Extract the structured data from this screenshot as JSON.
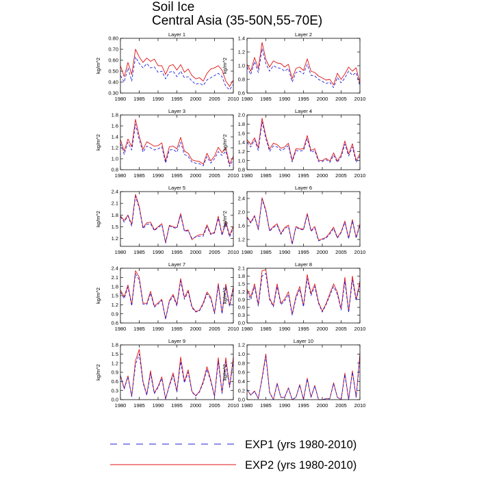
{
  "title": "Soil Ice",
  "subtitle": "Central Asia (35-50N,55-70E)",
  "legend": [
    {
      "label": "EXP1 (yrs 1980-2010)",
      "color": "#1f1fd8",
      "style": "dashed"
    },
    {
      "label": "EXP2 (yrs 1980-2010)",
      "color": "#e01010",
      "style": "solid"
    }
  ],
  "chart_data": [
    {
      "type": "line",
      "title": "Layer 1",
      "ylabel": "kg/m^2",
      "xlim": [
        1980,
        2010
      ],
      "ylim": [
        0.3,
        0.8
      ],
      "yticks": [
        0.3,
        0.4,
        0.5,
        0.6,
        0.7,
        0.8
      ],
      "ytick_labels": [
        "0.30",
        "0.40",
        "0.50",
        "0.60",
        "0.70",
        "0.80"
      ],
      "xticks": [
        1980,
        1985,
        1990,
        1995,
        2000,
        2005,
        2010
      ],
      "series": [
        {
          "name": "EXP1",
          "values": [
            0.46,
            0.4,
            0.53,
            0.41,
            0.63,
            0.57,
            0.53,
            0.57,
            0.53,
            0.54,
            0.49,
            0.5,
            0.43,
            0.49,
            0.5,
            0.45,
            0.5,
            0.44,
            0.45,
            0.41,
            0.38,
            0.39,
            0.37,
            0.42,
            0.44,
            0.46,
            0.48,
            0.45,
            0.36,
            0.33,
            0.38
          ]
        },
        {
          "name": "EXP2",
          "values": [
            0.55,
            0.45,
            0.58,
            0.47,
            0.7,
            0.63,
            0.58,
            0.62,
            0.59,
            0.61,
            0.55,
            0.55,
            0.47,
            0.55,
            0.56,
            0.51,
            0.56,
            0.49,
            0.52,
            0.46,
            0.43,
            0.44,
            0.41,
            0.48,
            0.52,
            0.53,
            0.55,
            0.51,
            0.41,
            0.36,
            0.42
          ]
        }
      ]
    },
    {
      "type": "line",
      "title": "Layer 2",
      "ylabel": "kg/m^2",
      "xlim": [
        1980,
        2010
      ],
      "ylim": [
        0.6,
        1.4
      ],
      "yticks": [
        0.6,
        0.8,
        1.0,
        1.2,
        1.4
      ],
      "ytick_labels": [
        "0.6",
        "0.8",
        "1.0",
        "1.2",
        "1.4"
      ],
      "xticks": [
        1980,
        1985,
        1990,
        1995,
        2000,
        2005,
        2010
      ],
      "series": [
        {
          "name": "EXP1",
          "values": [
            0.98,
            0.87,
            1.06,
            0.9,
            1.25,
            1.03,
            0.92,
            1.0,
            0.97,
            0.96,
            0.92,
            0.96,
            0.76,
            0.9,
            0.92,
            0.88,
            1.02,
            0.86,
            0.85,
            0.8,
            0.77,
            0.74,
            0.76,
            0.68,
            0.83,
            0.75,
            0.82,
            0.92,
            0.86,
            0.9,
            0.7
          ]
        },
        {
          "name": "EXP2",
          "values": [
            1.02,
            0.92,
            1.12,
            0.96,
            1.34,
            1.09,
            0.98,
            1.07,
            1.04,
            1.03,
            0.98,
            1.02,
            0.81,
            0.96,
            0.98,
            0.93,
            1.1,
            0.92,
            0.9,
            0.85,
            0.82,
            0.79,
            0.8,
            0.72,
            0.89,
            0.8,
            0.88,
            0.98,
            0.92,
            0.97,
            0.74
          ]
        }
      ]
    },
    {
      "type": "line",
      "title": "Layer 3",
      "ylabel": "kg/m^2",
      "xlim": [
        1980,
        2010
      ],
      "ylim": [
        0.8,
        1.8
      ],
      "yticks": [
        0.8,
        1.0,
        1.2,
        1.4,
        1.6,
        1.8
      ],
      "ytick_labels": [
        "0.8",
        "1.0",
        "1.2",
        "1.4",
        "1.6",
        "1.8"
      ],
      "xticks": [
        1980,
        1985,
        1990,
        1995,
        2000,
        2005,
        2010
      ],
      "series": [
        {
          "name": "EXP1",
          "values": [
            1.28,
            1.08,
            1.3,
            1.16,
            1.63,
            1.35,
            1.12,
            1.23,
            1.2,
            1.16,
            1.18,
            1.22,
            0.92,
            1.16,
            1.17,
            1.12,
            1.3,
            1.08,
            1.04,
            0.94,
            0.92,
            0.91,
            0.87,
            1.04,
            0.92,
            1.0,
            1.13,
            1.06,
            1.14,
            0.86,
            0.99
          ]
        },
        {
          "name": "EXP2",
          "values": [
            1.35,
            1.14,
            1.36,
            1.22,
            1.72,
            1.41,
            1.17,
            1.31,
            1.27,
            1.23,
            1.24,
            1.29,
            0.96,
            1.22,
            1.23,
            1.18,
            1.39,
            1.14,
            1.1,
            0.98,
            0.96,
            0.95,
            0.9,
            1.1,
            0.96,
            1.05,
            1.21,
            1.11,
            1.2,
            0.9,
            1.05
          ]
        }
      ]
    },
    {
      "type": "line",
      "title": "Layer 4",
      "ylabel": "kg/m^2",
      "xlim": [
        1980,
        2010
      ],
      "ylim": [
        0.8,
        2.0
      ],
      "yticks": [
        0.8,
        1.0,
        1.2,
        1.4,
        1.6,
        1.8,
        2.0
      ],
      "ytick_labels": [
        "0.8",
        "1.0",
        "1.2",
        "1.4",
        "1.6",
        "1.8",
        "2.0"
      ],
      "xticks": [
        1980,
        1985,
        1990,
        1995,
        2000,
        2005,
        2010
      ],
      "series": [
        {
          "name": "EXP1",
          "values": [
            1.4,
            1.3,
            1.45,
            1.22,
            1.85,
            1.48,
            1.2,
            1.32,
            1.3,
            1.22,
            1.26,
            1.33,
            0.97,
            1.22,
            1.21,
            1.22,
            1.48,
            1.18,
            1.22,
            0.98,
            0.98,
            1.02,
            0.96,
            1.12,
            0.96,
            1.08,
            1.36,
            1.1,
            1.3,
            0.96,
            1.1
          ]
        },
        {
          "name": "EXP2",
          "values": [
            1.46,
            1.35,
            1.5,
            1.28,
            1.93,
            1.54,
            1.25,
            1.38,
            1.35,
            1.27,
            1.3,
            1.38,
            1.0,
            1.26,
            1.25,
            1.26,
            1.55,
            1.22,
            1.26,
            1.01,
            1.0,
            1.05,
            0.99,
            1.17,
            0.99,
            1.12,
            1.43,
            1.14,
            1.37,
            1.0,
            1.15
          ]
        }
      ]
    },
    {
      "type": "line",
      "title": "Layer 5",
      "ylabel": "kg/m^2",
      "xlim": [
        1980,
        2010
      ],
      "ylim": [
        1.0,
        2.4
      ],
      "yticks": [
        1.2,
        1.5,
        1.8,
        2.1,
        2.4
      ],
      "ytick_labels": [
        "1.2",
        "1.5",
        "1.8",
        "2.1",
        "2.4"
      ],
      "xticks": [
        1980,
        1985,
        1990,
        1995,
        2000,
        2005,
        2010
      ],
      "series": [
        {
          "name": "EXP1",
          "values": [
            1.76,
            1.62,
            1.78,
            1.52,
            2.28,
            1.98,
            1.45,
            1.56,
            1.58,
            1.4,
            1.48,
            1.55,
            1.08,
            1.52,
            1.48,
            1.46,
            1.8,
            1.38,
            1.4,
            1.2,
            1.24,
            1.26,
            1.26,
            1.5,
            1.3,
            1.34,
            1.72,
            1.28,
            1.6,
            1.24,
            1.48
          ]
        },
        {
          "name": "EXP2",
          "values": [
            1.78,
            1.66,
            1.8,
            1.56,
            2.33,
            2.02,
            1.48,
            1.6,
            1.62,
            1.42,
            1.5,
            1.58,
            1.1,
            1.54,
            1.5,
            1.48,
            1.84,
            1.4,
            1.42,
            1.17,
            1.25,
            1.3,
            1.3,
            1.55,
            1.32,
            1.36,
            1.77,
            1.3,
            1.64,
            1.28,
            1.52
          ]
        }
      ]
    },
    {
      "type": "line",
      "title": "Layer 6",
      "ylabel": "kg/m^2",
      "xlim": [
        1980,
        2010
      ],
      "ylim": [
        1.0,
        2.6
      ],
      "yticks": [
        1.2,
        1.6,
        2.0,
        2.4
      ],
      "ytick_labels": [
        "1.2",
        "1.6",
        "2.0",
        "2.4"
      ],
      "xticks": [
        1980,
        1985,
        1990,
        1995,
        2000,
        2005,
        2010
      ],
      "series": [
        {
          "name": "EXP1",
          "values": [
            1.84,
            1.68,
            1.88,
            1.48,
            2.38,
            2.02,
            1.44,
            1.55,
            1.62,
            1.35,
            1.52,
            1.58,
            1.06,
            1.56,
            1.5,
            1.48,
            1.92,
            1.44,
            1.54,
            1.16,
            1.2,
            1.24,
            1.36,
            1.52,
            1.24,
            1.4,
            1.7,
            1.22,
            1.74,
            1.24,
            1.62
          ]
        },
        {
          "name": "EXP2",
          "values": [
            1.86,
            1.7,
            1.9,
            1.5,
            2.42,
            2.06,
            1.46,
            1.58,
            1.66,
            1.37,
            1.55,
            1.62,
            1.07,
            1.58,
            1.52,
            1.5,
            1.96,
            1.46,
            1.58,
            1.18,
            1.22,
            1.26,
            1.4,
            1.56,
            1.26,
            1.42,
            1.74,
            1.24,
            1.78,
            1.26,
            1.66
          ]
        }
      ]
    },
    {
      "type": "line",
      "title": "Layer 7",
      "ylabel": "kg/m^2",
      "xlim": [
        1980,
        2010
      ],
      "ylim": [
        0.6,
        2.4
      ],
      "yticks": [
        0.6,
        0.9,
        1.2,
        1.5,
        1.8,
        2.1,
        2.4
      ],
      "ytick_labels": [
        "0.6",
        "0.9",
        "1.2",
        "1.5",
        "1.8",
        "2.1",
        "2.4"
      ],
      "xticks": [
        1980,
        1985,
        1990,
        1995,
        2000,
        2005,
        2010
      ],
      "series": [
        {
          "name": "EXP1",
          "values": [
            1.62,
            1.4,
            1.78,
            1.16,
            2.22,
            2.02,
            1.22,
            1.2,
            1.58,
            1.12,
            1.22,
            1.34,
            0.72,
            1.3,
            1.48,
            1.16,
            1.98,
            1.38,
            1.62,
            1.1,
            0.96,
            1.0,
            1.22,
            1.56,
            1.4,
            0.9,
            1.82,
            0.9,
            1.8,
            1.14,
            1.72
          ]
        },
        {
          "name": "EXP2",
          "values": [
            1.68,
            1.46,
            1.85,
            1.2,
            2.32,
            2.1,
            1.26,
            1.24,
            1.64,
            1.16,
            1.26,
            1.38,
            0.74,
            1.34,
            1.54,
            1.2,
            2.06,
            1.44,
            1.68,
            1.14,
            0.98,
            1.02,
            1.26,
            1.62,
            1.45,
            0.93,
            1.9,
            0.93,
            1.88,
            1.18,
            1.8
          ]
        }
      ]
    },
    {
      "type": "line",
      "title": "Layer 8",
      "ylabel": "kg/m^2",
      "xlim": [
        1980,
        2010
      ],
      "ylim": [
        0.0,
        2.1
      ],
      "yticks": [
        0.0,
        0.3,
        0.6,
        0.9,
        1.2,
        1.5,
        1.8,
        2.1
      ],
      "ytick_labels": [
        "0.0",
        "0.3",
        "0.6",
        "0.9",
        "1.2",
        "1.5",
        "1.8",
        "2.1"
      ],
      "xticks": [
        1980,
        1985,
        1990,
        1995,
        2000,
        2005,
        2010
      ],
      "series": [
        {
          "name": "EXP1",
          "values": [
            1.2,
            0.9,
            1.4,
            0.65,
            1.8,
            1.9,
            0.9,
            0.62,
            1.4,
            0.7,
            0.85,
            1.1,
            0.3,
            0.95,
            1.3,
            0.62,
            1.7,
            1.05,
            1.4,
            0.75,
            0.42,
            0.7,
            1.05,
            1.4,
            1.1,
            0.5,
            1.6,
            0.4,
            1.65,
            0.85,
            1.5
          ]
        },
        {
          "name": "EXP2",
          "values": [
            1.3,
            1.0,
            1.5,
            0.7,
            2.0,
            2.05,
            0.95,
            0.66,
            1.5,
            0.75,
            0.92,
            1.2,
            0.33,
            1.02,
            1.4,
            0.66,
            1.86,
            1.12,
            1.5,
            0.8,
            0.45,
            0.74,
            1.12,
            1.5,
            1.18,
            0.54,
            1.75,
            0.44,
            1.8,
            0.9,
            1.62
          ]
        }
      ]
    },
    {
      "type": "line",
      "title": "Layer 9",
      "ylabel": "kg/m^2",
      "xlim": [
        1980,
        2010
      ],
      "ylim": [
        0.0,
        1.8
      ],
      "yticks": [
        0.0,
        0.3,
        0.6,
        0.9,
        1.2,
        1.5,
        1.8
      ],
      "ytick_labels": [
        "0.0",
        "0.3",
        "0.6",
        "0.9",
        "1.2",
        "1.5",
        "1.8"
      ],
      "xticks": [
        1980,
        1985,
        1990,
        1995,
        2000,
        2005,
        2010
      ],
      "series": [
        {
          "name": "EXP1",
          "values": [
            0.78,
            0.35,
            0.75,
            0.1,
            1.15,
            1.5,
            0.55,
            0.15,
            0.85,
            0.2,
            0.4,
            0.7,
            0.02,
            0.45,
            0.8,
            0.25,
            1.25,
            0.55,
            0.9,
            0.25,
            0.12,
            0.25,
            0.55,
            1.0,
            0.6,
            0.1,
            1.25,
            0.2,
            1.25,
            0.4,
            1.28
          ]
        },
        {
          "name": "EXP2",
          "values": [
            0.8,
            0.37,
            0.78,
            0.11,
            1.28,
            1.65,
            0.6,
            0.16,
            0.95,
            0.22,
            0.43,
            0.75,
            0.02,
            0.48,
            0.88,
            0.27,
            1.4,
            0.6,
            0.98,
            0.27,
            0.13,
            0.27,
            0.6,
            1.08,
            0.65,
            0.11,
            1.38,
            0.22,
            1.38,
            0.43,
            1.4
          ]
        }
      ]
    },
    {
      "type": "line",
      "title": "Layer 10",
      "ylabel": "kg/m^2",
      "xlim": [
        1980,
        2010
      ],
      "ylim": [
        0.0,
        1.2
      ],
      "yticks": [
        0.0,
        0.2,
        0.4,
        0.6,
        0.8,
        1.0,
        1.2
      ],
      "ytick_labels": [
        "0.0",
        "0.2",
        "0.4",
        "0.6",
        "0.8",
        "1.0",
        "1.2"
      ],
      "xticks": [
        1980,
        1985,
        1990,
        1995,
        2000,
        2005,
        2010
      ],
      "series": [
        {
          "name": "EXP1",
          "values": [
            0.22,
            0.1,
            0.18,
            0.02,
            0.45,
            0.95,
            0.15,
            0.0,
            0.35,
            0.05,
            0.05,
            0.25,
            0.0,
            0.05,
            0.32,
            0.0,
            0.45,
            0.05,
            0.3,
            0.0,
            0.0,
            0.02,
            0.02,
            0.35,
            0.05,
            0.0,
            0.55,
            0.0,
            0.6,
            0.05,
            0.95
          ]
        },
        {
          "name": "EXP2",
          "values": [
            0.22,
            0.1,
            0.19,
            0.02,
            0.48,
            1.0,
            0.16,
            0.0,
            0.36,
            0.05,
            0.05,
            0.26,
            0.0,
            0.05,
            0.33,
            0.0,
            0.47,
            0.05,
            0.31,
            0.0,
            0.0,
            0.02,
            0.02,
            0.37,
            0.05,
            0.0,
            0.58,
            0.0,
            0.63,
            0.05,
            1.02
          ]
        }
      ]
    }
  ]
}
